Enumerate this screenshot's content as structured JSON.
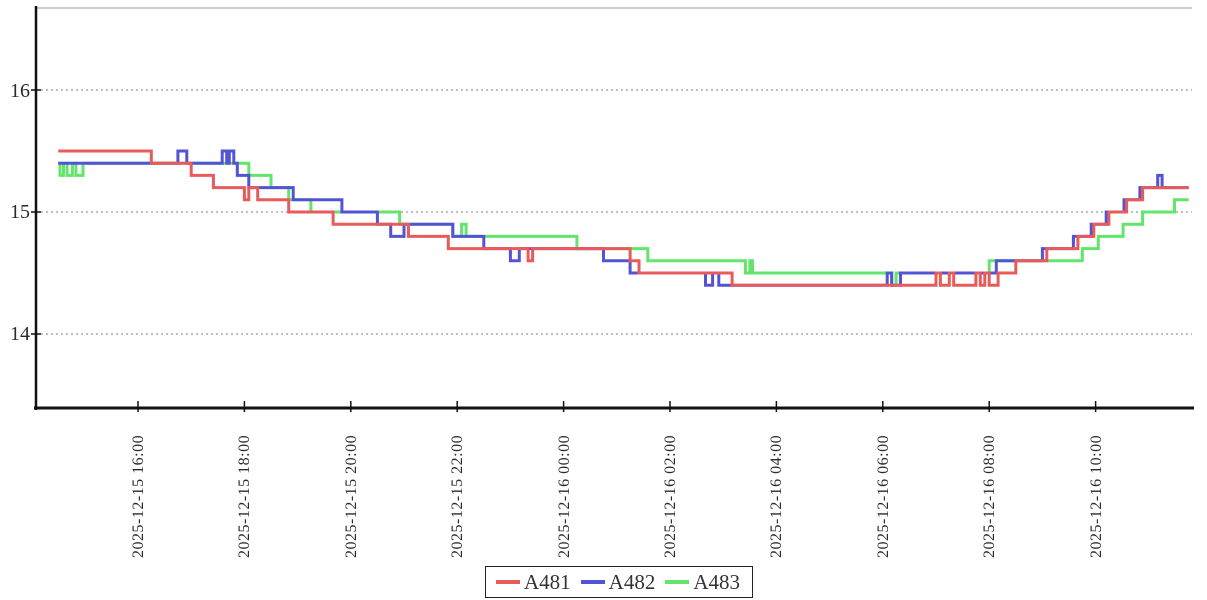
{
  "figure": {
    "background": "#ffffff",
    "axis_color": "#111111",
    "grid_color": "#808080",
    "tick_label_color": "#2b2b2b"
  },
  "chart_data": {
    "type": "line",
    "interpolation": "step-after",
    "title": "",
    "xlabel": "",
    "ylabel": "",
    "grid": true,
    "ylim": [
      13.38,
      16.67
    ],
    "yticks": [
      {
        "label": "16",
        "value": 16
      },
      {
        "label": "15",
        "value": 15
      },
      {
        "label": "14",
        "value": 14
      }
    ],
    "x_axis": {
      "start": "2025-12-15 14:05",
      "end": "2025-12-16 11:49",
      "ticks": [
        {
          "label": "2025-12-15 16:00"
        },
        {
          "label": "2025-12-15 18:00"
        },
        {
          "label": "2025-12-15 20:00"
        },
        {
          "label": "2025-12-15 22:00"
        },
        {
          "label": "2025-12-16 00:00"
        },
        {
          "label": "2025-12-16 02:00"
        },
        {
          "label": "2025-12-16 04:00"
        },
        {
          "label": "2025-12-16 06:00"
        },
        {
          "label": "2025-12-16 08:00"
        },
        {
          "label": "2025-12-16 10:00"
        }
      ]
    },
    "legend": {
      "position": "bottom-center",
      "labels": [
        "A481",
        "A482",
        "A483"
      ]
    },
    "series": [
      {
        "name": "A483",
        "color": "#63e56c",
        "points": [
          [
            "2025-12-15 14:30",
            15.4
          ],
          [
            "2025-12-15 14:32",
            15.3
          ],
          [
            "2025-12-15 14:36",
            15.4
          ],
          [
            "2025-12-15 14:40",
            15.3
          ],
          [
            "2025-12-15 14:46",
            15.4
          ],
          [
            "2025-12-15 14:50",
            15.3
          ],
          [
            "2025-12-15 14:58",
            15.4
          ],
          [
            "2025-12-15 18:05",
            15.3
          ],
          [
            "2025-12-15 18:30",
            15.2
          ],
          [
            "2025-12-15 18:50",
            15.1
          ],
          [
            "2025-12-15 19:15",
            15.0
          ],
          [
            "2025-12-15 20:55",
            14.9
          ],
          [
            "2025-12-15 21:55",
            14.8
          ],
          [
            "2025-12-15 22:05",
            14.9
          ],
          [
            "2025-12-15 22:10",
            14.8
          ],
          [
            "2025-12-16 00:15",
            14.7
          ],
          [
            "2025-12-16 01:35",
            14.6
          ],
          [
            "2025-12-16 03:25",
            14.5
          ],
          [
            "2025-12-16 03:30",
            14.6
          ],
          [
            "2025-12-16 03:33",
            14.5
          ],
          [
            "2025-12-16 06:10",
            14.4
          ],
          [
            "2025-12-16 06:15",
            14.5
          ],
          [
            "2025-12-16 08:00",
            14.6
          ],
          [
            "2025-12-16 09:45",
            14.7
          ],
          [
            "2025-12-16 10:03",
            14.8
          ],
          [
            "2025-12-16 10:31",
            14.9
          ],
          [
            "2025-12-16 10:53",
            15.0
          ],
          [
            "2025-12-16 11:29",
            15.1
          ],
          [
            "2025-12-16 11:45",
            15.1
          ]
        ]
      },
      {
        "name": "A482",
        "color": "#5353d6",
        "points": [
          [
            "2025-12-15 14:30",
            15.4
          ],
          [
            "2025-12-15 16:45",
            15.5
          ],
          [
            "2025-12-15 16:55",
            15.4
          ],
          [
            "2025-12-15 17:35",
            15.5
          ],
          [
            "2025-12-15 17:40",
            15.4
          ],
          [
            "2025-12-15 17:43",
            15.5
          ],
          [
            "2025-12-15 17:48",
            15.4
          ],
          [
            "2025-12-15 17:52",
            15.3
          ],
          [
            "2025-12-15 18:05",
            15.2
          ],
          [
            "2025-12-15 18:55",
            15.1
          ],
          [
            "2025-12-15 19:50",
            15.0
          ],
          [
            "2025-12-15 20:30",
            14.9
          ],
          [
            "2025-12-15 20:45",
            14.8
          ],
          [
            "2025-12-15 21:00",
            14.9
          ],
          [
            "2025-12-15 21:55",
            14.8
          ],
          [
            "2025-12-15 22:30",
            14.7
          ],
          [
            "2025-12-15 23:00",
            14.6
          ],
          [
            "2025-12-15 23:10",
            14.7
          ],
          [
            "2025-12-16 00:45",
            14.6
          ],
          [
            "2025-12-16 01:15",
            14.5
          ],
          [
            "2025-12-16 02:40",
            14.4
          ],
          [
            "2025-12-16 02:48",
            14.5
          ],
          [
            "2025-12-16 02:55",
            14.4
          ],
          [
            "2025-12-16 06:05",
            14.5
          ],
          [
            "2025-12-16 06:10",
            14.4
          ],
          [
            "2025-12-16 06:20",
            14.5
          ],
          [
            "2025-12-16 08:08",
            14.6
          ],
          [
            "2025-12-16 09:00",
            14.7
          ],
          [
            "2025-12-16 09:35",
            14.8
          ],
          [
            "2025-12-16 09:55",
            14.9
          ],
          [
            "2025-12-16 10:12",
            15.0
          ],
          [
            "2025-12-16 10:32",
            15.1
          ],
          [
            "2025-12-16 10:50",
            15.2
          ],
          [
            "2025-12-16 11:10",
            15.3
          ],
          [
            "2025-12-16 11:15",
            15.2
          ],
          [
            "2025-12-16 11:45",
            15.2
          ]
        ]
      },
      {
        "name": "A481",
        "color": "#e85b5b",
        "points": [
          [
            "2025-12-15 14:30",
            15.5
          ],
          [
            "2025-12-15 16:15",
            15.4
          ],
          [
            "2025-12-15 17:00",
            15.3
          ],
          [
            "2025-12-15 17:25",
            15.2
          ],
          [
            "2025-12-15 18:00",
            15.1
          ],
          [
            "2025-12-15 18:05",
            15.2
          ],
          [
            "2025-12-15 18:15",
            15.1
          ],
          [
            "2025-12-15 18:50",
            15.0
          ],
          [
            "2025-12-15 19:40",
            14.9
          ],
          [
            "2025-12-15 21:05",
            14.8
          ],
          [
            "2025-12-15 21:50",
            14.7
          ],
          [
            "2025-12-15 23:20",
            14.6
          ],
          [
            "2025-12-15 23:25",
            14.7
          ],
          [
            "2025-12-16 01:15",
            14.6
          ],
          [
            "2025-12-16 01:25",
            14.5
          ],
          [
            "2025-12-16 03:10",
            14.4
          ],
          [
            "2025-12-16 07:00",
            14.5
          ],
          [
            "2025-12-16 07:05",
            14.4
          ],
          [
            "2025-12-16 07:15",
            14.5
          ],
          [
            "2025-12-16 07:20",
            14.4
          ],
          [
            "2025-12-16 07:45",
            14.5
          ],
          [
            "2025-12-16 07:50",
            14.4
          ],
          [
            "2025-12-16 07:55",
            14.5
          ],
          [
            "2025-12-16 08:00",
            14.4
          ],
          [
            "2025-12-16 08:10",
            14.5
          ],
          [
            "2025-12-16 08:30",
            14.6
          ],
          [
            "2025-12-16 09:05",
            14.7
          ],
          [
            "2025-12-16 09:40",
            14.8
          ],
          [
            "2025-12-16 09:58",
            14.9
          ],
          [
            "2025-12-16 10:15",
            15.0
          ],
          [
            "2025-12-16 10:35",
            15.1
          ],
          [
            "2025-12-16 10:53",
            15.2
          ],
          [
            "2025-12-16 11:45",
            15.2
          ]
        ]
      }
    ]
  }
}
